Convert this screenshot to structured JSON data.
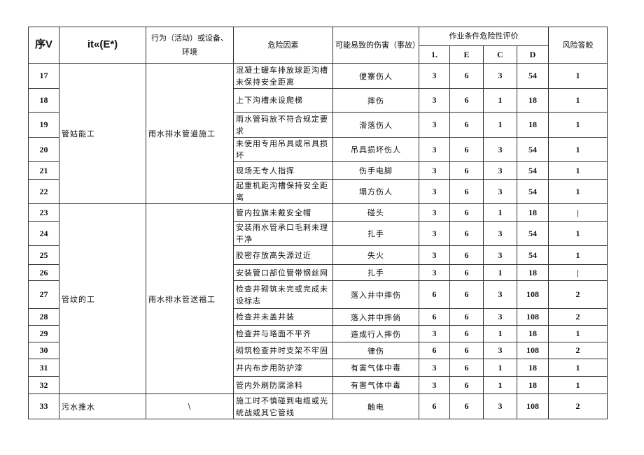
{
  "header": {
    "seq": "序V",
    "col2": "it«(E*)",
    "activity": "行为（活动）或设备、环境",
    "hazard": "危险因素",
    "harm": "可能易致的伤害（事故）",
    "evaluation": "作业条件危险性评价",
    "L": "1.",
    "E": "E",
    "C": "C",
    "D": "D",
    "risk": "风险答鲛"
  },
  "groups": [
    {
      "name": "管姑能工",
      "activity": "雨水排水管道施工",
      "rows": [
        {
          "no": "17",
          "hazard": "混凝土罐车排放球距沟槽未保持安全距离",
          "harm": "便寨伤人",
          "L": "3",
          "E": "6",
          "C": "3",
          "D": "54",
          "risk": "1"
        },
        {
          "no": "18",
          "hazard": "上下沟槽未设爬梯",
          "harm": "摔伤",
          "L": "3",
          "E": "6",
          "C": "1",
          "D": "18",
          "risk": "1"
        },
        {
          "no": "19",
          "hazard": "雨水管码放不符合规定要求",
          "harm": "滑落伤人",
          "L": "3",
          "E": "6",
          "C": "1",
          "D": "18",
          "risk": "1"
        },
        {
          "no": "20",
          "hazard": "未使用专用吊具或吊具损坏",
          "harm": "吊具损坏伤人",
          "L": "3",
          "E": "6",
          "C": "3",
          "D": "54",
          "risk": "1"
        },
        {
          "no": "21",
          "hazard": "现场无专人指挥",
          "harm": "伤手电脚",
          "L": "3",
          "E": "6",
          "C": "3",
          "D": "54",
          "risk": "1"
        },
        {
          "no": "22",
          "hazard": "起重机距沟槽保持安全距离",
          "harm": "塌方伤人",
          "L": "3",
          "E": "6",
          "C": "3",
          "D": "54",
          "risk": "1"
        }
      ]
    },
    {
      "name": "管纹的工",
      "activity": "雨水排水管送福工",
      "rows": [
        {
          "no": "23",
          "hazard": "管内拉旗未戴安全帽",
          "harm": "碰头",
          "L": "3",
          "E": "6",
          "C": "1",
          "D": "18",
          "risk": "|"
        },
        {
          "no": "24",
          "hazard": "安装雨水管承口毛刺未理干净",
          "harm": "扎手",
          "L": "3",
          "E": "6",
          "C": "3",
          "D": "54",
          "risk": "1"
        },
        {
          "no": "25",
          "hazard": "胶密存放高失源过近",
          "harm": "失火",
          "L": "3",
          "E": "6",
          "C": "3",
          "D": "54",
          "risk": "1"
        },
        {
          "no": "26",
          "hazard": "安装管口部位管带钢丝网",
          "harm": "扎手",
          "L": "3",
          "E": "6",
          "C": "1",
          "D": "18",
          "risk": "|"
        },
        {
          "no": "27",
          "hazard": "检查井砌筑未完或完成未设标志",
          "harm": "落入井中摔伤",
          "L": "6",
          "E": "6",
          "C": "3",
          "D": "108",
          "risk": "2"
        },
        {
          "no": "28",
          "hazard": "检查井未盖井装",
          "harm": "落入井中摔倘",
          "L": "6",
          "E": "6",
          "C": "3",
          "D": "108",
          "risk": "2"
        },
        {
          "no": "29",
          "hazard": "检查井与珞面不平齐",
          "harm": "造成行人摔伤",
          "L": "3",
          "E": "6",
          "C": "1",
          "D": "18",
          "risk": "1"
        },
        {
          "no": "30",
          "hazard": "砌筑检查井时支架不牢固",
          "harm": "律伤",
          "L": "6",
          "E": "6",
          "C": "3",
          "D": "108",
          "risk": "2"
        },
        {
          "no": "31",
          "hazard": "井内布步用防护漆",
          "harm": "有害气体中毒",
          "L": "3",
          "E": "6",
          "C": "1",
          "D": "18",
          "risk": "1"
        },
        {
          "no": "32",
          "hazard": "管内外刷防腐涂料",
          "harm": "有害气体中毒",
          "L": "3",
          "E": "6",
          "C": "1",
          "D": "18",
          "risk": "1"
        }
      ]
    },
    {
      "name": "污水推水",
      "activity": "\\",
      "rows": [
        {
          "no": "33",
          "hazard": "施工时不慎碰到电缆或光统战或其它管线",
          "harm": "触电",
          "L": "6",
          "E": "6",
          "C": "3",
          "D": "108",
          "risk": "2"
        }
      ]
    }
  ]
}
